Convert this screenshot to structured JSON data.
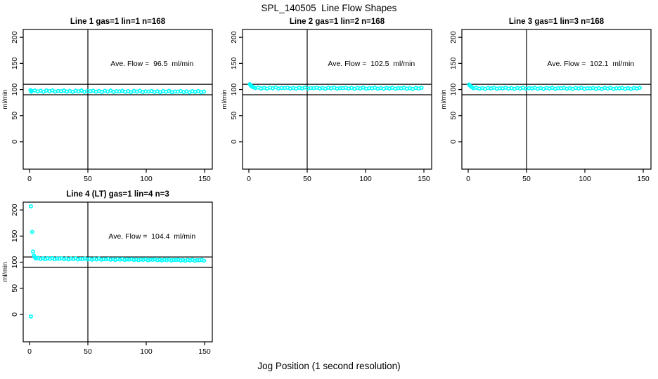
{
  "figure": {
    "title": "SPL_140505  Line Flow Shapes",
    "x_axis_title": "Jog Position (1 second resolution)"
  },
  "colors": {
    "points": "#00ffff",
    "axis": "#000000",
    "text": "#000000",
    "background": "#ffffff"
  },
  "chart_data": [
    {
      "type": "scatter",
      "title": "Line 1 gas=1 lin=1 n=168",
      "annotation": "Ave. Flow =  96.5  ml/min",
      "ave_flow_ml_min": 96.5,
      "n": 168,
      "ylabel": "ml/min",
      "x_ticks": [
        0,
        50,
        100,
        150
      ],
      "y_ticks": [
        0,
        50,
        100,
        150,
        200
      ],
      "xlim": [
        -5,
        157
      ],
      "ylim": [
        -52,
        215
      ],
      "ref_lines_h": [
        110,
        90
      ],
      "ref_lines_v": [
        50
      ],
      "points": [
        [
          0.8,
          98.8
        ],
        [
          1.4,
          96.0
        ],
        [
          2,
          97.2
        ],
        [
          4.5,
          98.2
        ],
        [
          7,
          96.3
        ],
        [
          9.5,
          97.6
        ],
        [
          12,
          95.8
        ],
        [
          14.5,
          98.0
        ],
        [
          17,
          96.7
        ],
        [
          19.5,
          98.4
        ],
        [
          22,
          96.0
        ],
        [
          24.5,
          97.2
        ],
        [
          27,
          96.9
        ],
        [
          29.5,
          98.0
        ],
        [
          32,
          96.1
        ],
        [
          34.5,
          97.3
        ],
        [
          37,
          95.6
        ],
        [
          39.5,
          97.7
        ],
        [
          42,
          96.4
        ],
        [
          44.5,
          98.1
        ],
        [
          47,
          95.7
        ],
        [
          49.5,
          97.0
        ],
        [
          52,
          96.7
        ],
        [
          54.5,
          97.7
        ],
        [
          57,
          95.8
        ],
        [
          59.5,
          97.1
        ],
        [
          62,
          95.3
        ],
        [
          64.5,
          97.5
        ],
        [
          67,
          96.2
        ],
        [
          69.5,
          97.9
        ],
        [
          72,
          95.5
        ],
        [
          74.5,
          96.7
        ],
        [
          77,
          96.4
        ],
        [
          79.5,
          97.5
        ],
        [
          82,
          95.6
        ],
        [
          84.5,
          96.8
        ],
        [
          87,
          95.1
        ],
        [
          89.5,
          97.2
        ],
        [
          92,
          95.9
        ],
        [
          94.5,
          97.6
        ],
        [
          97,
          95.2
        ],
        [
          99.5,
          96.5
        ],
        [
          102,
          96.2
        ],
        [
          104.5,
          97.2
        ],
        [
          107,
          95.3
        ],
        [
          109.5,
          96.6
        ],
        [
          112,
          94.8
        ],
        [
          114.5,
          97.0
        ],
        [
          117,
          95.7
        ],
        [
          119.5,
          97.4
        ],
        [
          122,
          95.0
        ],
        [
          124.5,
          96.2
        ],
        [
          127,
          95.9
        ],
        [
          129.5,
          97.0
        ],
        [
          132,
          95.1
        ],
        [
          134.5,
          96.3
        ],
        [
          137,
          94.6
        ],
        [
          139.5,
          96.7
        ],
        [
          142,
          95.4
        ],
        [
          144.5,
          97.1
        ],
        [
          147,
          94.7
        ],
        [
          149.5,
          96.0
        ]
      ]
    },
    {
      "type": "scatter",
      "title": "Line 2 gas=1 lin=2 n=168",
      "annotation": "Ave. Flow =  102.5  ml/min",
      "ave_flow_ml_min": 102.5,
      "n": 168,
      "ylabel": "ml/min",
      "x_ticks": [
        0,
        50,
        100,
        150
      ],
      "y_ticks": [
        0,
        50,
        100,
        150,
        200
      ],
      "xlim": [
        -5,
        157
      ],
      "ylim": [
        -52,
        215
      ],
      "ref_lines_h": [
        110,
        90
      ],
      "ref_lines_v": [
        50
      ],
      "points": [
        [
          0.8,
          110.3
        ],
        [
          1.5,
          108.2
        ],
        [
          2.3,
          106.4
        ],
        [
          3.2,
          105.1
        ],
        [
          4.2,
          104.3
        ],
        [
          5.5,
          102.9
        ],
        [
          8,
          103.8
        ],
        [
          10.5,
          102.1
        ],
        [
          13,
          103.2
        ],
        [
          15.5,
          101.7
        ],
        [
          18,
          103.6
        ],
        [
          20.5,
          102.5
        ],
        [
          23,
          104.0
        ],
        [
          25.5,
          101.9
        ],
        [
          28,
          103.0
        ],
        [
          30.5,
          102.8
        ],
        [
          33,
          103.7
        ],
        [
          35.5,
          102.0
        ],
        [
          38,
          103.2
        ],
        [
          40.5,
          101.6
        ],
        [
          43,
          103.5
        ],
        [
          45.5,
          102.4
        ],
        [
          48,
          103.9
        ],
        [
          50.5,
          101.8
        ],
        [
          53,
          102.9
        ],
        [
          55.5,
          102.7
        ],
        [
          58,
          103.6
        ],
        [
          60.5,
          101.9
        ],
        [
          63,
          103.1
        ],
        [
          65.5,
          101.5
        ],
        [
          68,
          103.4
        ],
        [
          70.5,
          102.3
        ],
        [
          73,
          103.8
        ],
        [
          75.5,
          101.7
        ],
        [
          78,
          102.8
        ],
        [
          80.5,
          102.6
        ],
        [
          83,
          103.5
        ],
        [
          85.5,
          101.8
        ],
        [
          88,
          103.0
        ],
        [
          90.5,
          101.4
        ],
        [
          93,
          103.3
        ],
        [
          95.5,
          102.2
        ],
        [
          98,
          103.7
        ],
        [
          100.5,
          101.6
        ],
        [
          103,
          102.7
        ],
        [
          105.5,
          102.5
        ],
        [
          108,
          103.4
        ],
        [
          110.5,
          101.7
        ],
        [
          113,
          102.9
        ],
        [
          115.5,
          101.3
        ],
        [
          118,
          103.2
        ],
        [
          120.5,
          102.1
        ],
        [
          123,
          103.6
        ],
        [
          125.5,
          101.5
        ],
        [
          128,
          102.6
        ],
        [
          130.5,
          102.4
        ],
        [
          133,
          103.3
        ],
        [
          135.5,
          101.6
        ],
        [
          138,
          102.8
        ],
        [
          140.5,
          101.2
        ],
        [
          143,
          103.1
        ],
        [
          145.5,
          102.0
        ],
        [
          148,
          103.5
        ]
      ]
    },
    {
      "type": "scatter",
      "title": "Line 3 gas=1 lin=3 n=168",
      "annotation": "Ave. Flow =  102.1  ml/min",
      "ave_flow_ml_min": 102.1,
      "n": 168,
      "ylabel": "ml/min",
      "x_ticks": [
        0,
        50,
        100,
        150
      ],
      "y_ticks": [
        0,
        50,
        100,
        150,
        200
      ],
      "xlim": [
        -5,
        157
      ],
      "ylim": [
        -52,
        215
      ],
      "ref_lines_h": [
        110,
        90
      ],
      "ref_lines_v": [
        50
      ],
      "points": [
        [
          0.8,
          109.6
        ],
        [
          1.5,
          107.3
        ],
        [
          2.4,
          105.6
        ],
        [
          3.3,
          104.4
        ],
        [
          4.5,
          102.5
        ],
        [
          7,
          103.4
        ],
        [
          9.5,
          101.7
        ],
        [
          12,
          102.9
        ],
        [
          14.5,
          101.3
        ],
        [
          17,
          103.2
        ],
        [
          19.5,
          102.1
        ],
        [
          22,
          103.6
        ],
        [
          24.5,
          101.5
        ],
        [
          27,
          102.7
        ],
        [
          29.5,
          102.4
        ],
        [
          32,
          103.4
        ],
        [
          34.5,
          101.7
        ],
        [
          37,
          102.8
        ],
        [
          39.5,
          101.3
        ],
        [
          42,
          103.2
        ],
        [
          44.5,
          102.0
        ],
        [
          47,
          103.6
        ],
        [
          49.5,
          101.5
        ],
        [
          52,
          102.6
        ],
        [
          54.5,
          102.3
        ],
        [
          57,
          103.3
        ],
        [
          59.5,
          101.6
        ],
        [
          62,
          102.8
        ],
        [
          64.5,
          101.2
        ],
        [
          67,
          103.1
        ],
        [
          69.5,
          102.0
        ],
        [
          72,
          103.5
        ],
        [
          74.5,
          101.4
        ],
        [
          77,
          102.6
        ],
        [
          79.5,
          102.3
        ],
        [
          82,
          103.2
        ],
        [
          84.5,
          101.5
        ],
        [
          87,
          102.7
        ],
        [
          89.5,
          101.1
        ],
        [
          92,
          103.0
        ],
        [
          94.5,
          101.9
        ],
        [
          97,
          103.5
        ],
        [
          99.5,
          101.3
        ],
        [
          102,
          102.5
        ],
        [
          104.5,
          102.2
        ],
        [
          107,
          103.1
        ],
        [
          109.5,
          101.4
        ],
        [
          112,
          102.7
        ],
        [
          114.5,
          101.1
        ],
        [
          117,
          103.0
        ],
        [
          119.5,
          101.8
        ],
        [
          122,
          103.4
        ],
        [
          124.5,
          101.2
        ],
        [
          127,
          102.4
        ],
        [
          129.5,
          102.1
        ],
        [
          132,
          103.1
        ],
        [
          134.5,
          101.4
        ],
        [
          137,
          102.6
        ],
        [
          139.5,
          101.0
        ],
        [
          142,
          102.9
        ],
        [
          144.5,
          101.8
        ],
        [
          147,
          103.3
        ]
      ]
    },
    {
      "type": "scatter",
      "title": "Line 4 (LT) gas=1 lin=4 n=3",
      "annotation": "Ave. Flow =  104.4  ml/min",
      "ave_flow_ml_min": 104.4,
      "n": 3,
      "ylabel": "ml/min",
      "x_ticks": [
        0,
        50,
        100,
        150
      ],
      "y_ticks": [
        0,
        50,
        100,
        150,
        200
      ],
      "xlim": [
        -5,
        157
      ],
      "ylim": [
        -52,
        215
      ],
      "ref_lines_h": [
        110,
        90
      ],
      "ref_lines_v": [
        50
      ],
      "points": [
        [
          1.2,
          207
        ],
        [
          1.2,
          -4
        ],
        [
          2.2,
          158
        ],
        [
          3.0,
          120.5
        ],
        [
          3.8,
          112.5
        ],
        [
          4.6,
          109.5
        ],
        [
          5.5,
          107.1
        ],
        [
          7.5,
          107.9
        ],
        [
          9.5,
          106.3
        ],
        [
          11.5,
          107.3
        ],
        [
          13.5,
          105.9
        ],
        [
          15.5,
          107.5
        ],
        [
          17.5,
          106.5
        ],
        [
          19.5,
          107.8
        ],
        [
          21.5,
          105.9
        ],
        [
          23.5,
          106.8
        ],
        [
          25.5,
          106.6
        ],
        [
          27.5,
          107.4
        ],
        [
          29.5,
          105.9
        ],
        [
          31.5,
          106.8
        ],
        [
          33.5,
          105.4
        ],
        [
          35.5,
          107.1
        ],
        [
          37.5,
          106.0
        ],
        [
          39.5,
          107.3
        ],
        [
          41.5,
          105.4
        ],
        [
          43.5,
          106.4
        ],
        [
          45.5,
          106.1
        ],
        [
          47.5,
          106.9
        ],
        [
          49.5,
          105.4
        ],
        [
          51.5,
          106.3
        ],
        [
          53.5,
          104.9
        ],
        [
          55.5,
          106.5
        ],
        [
          57.5,
          105.5
        ],
        [
          59.5,
          106.8
        ],
        [
          61.5,
          104.9
        ],
        [
          63.5,
          105.9
        ],
        [
          65.5,
          105.6
        ],
        [
          67.5,
          106.4
        ],
        [
          69.5,
          104.9
        ],
        [
          71.5,
          105.8
        ],
        [
          73.5,
          104.4
        ],
        [
          75.5,
          106.0
        ],
        [
          77.5,
          105.0
        ],
        [
          79.5,
          106.3
        ],
        [
          81.5,
          104.4
        ],
        [
          83.5,
          105.4
        ],
        [
          85.5,
          105.1
        ],
        [
          87.5,
          105.9
        ],
        [
          89.5,
          104.4
        ],
        [
          91.5,
          105.3
        ],
        [
          93.5,
          103.9
        ],
        [
          95.5,
          105.5
        ],
        [
          97.5,
          104.5
        ],
        [
          99.5,
          105.8
        ],
        [
          101.5,
          103.9
        ],
        [
          103.5,
          104.9
        ],
        [
          105.5,
          104.7
        ],
        [
          107.5,
          105.4
        ],
        [
          109.5,
          103.9
        ],
        [
          111.5,
          104.8
        ],
        [
          113.5,
          103.4
        ],
        [
          115.5,
          105.0
        ],
        [
          117.5,
          104.0
        ],
        [
          119.5,
          105.3
        ],
        [
          121.5,
          103.4
        ],
        [
          123.5,
          104.4
        ],
        [
          125.5,
          104.2
        ],
        [
          127.5,
          104.9
        ],
        [
          129.5,
          103.4
        ],
        [
          131.5,
          104.3
        ],
        [
          133.5,
          102.9
        ],
        [
          135.5,
          104.5
        ],
        [
          137.5,
          103.5
        ],
        [
          139.5,
          104.8
        ],
        [
          141.5,
          102.9
        ],
        [
          143.5,
          103.9
        ],
        [
          145.5,
          103.7
        ],
        [
          147.5,
          104.4
        ],
        [
          149.5,
          102.9
        ]
      ]
    }
  ]
}
